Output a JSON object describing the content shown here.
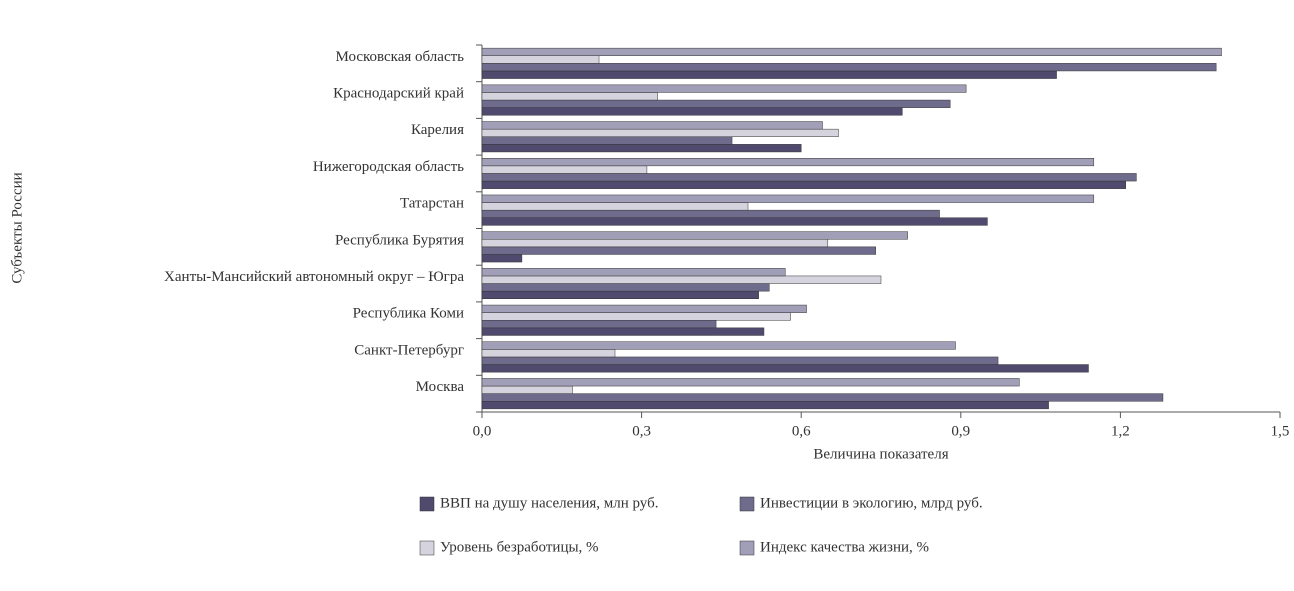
{
  "chart_data": {
    "type": "hbar",
    "y_label": "Субъекты России",
    "x_label": "Величина показателя",
    "categories": [
      "Московская область",
      "Краснодарский край",
      "Карелия",
      "Нижегородская область",
      "Татарстан",
      "Республика Бурятия",
      "Ханты-Мансийский автономный округ – Югра",
      "Республика Коми",
      "Санкт-Петербург",
      "Москва"
    ],
    "series": [
      {
        "name": "ВВП на душу населения, млн руб.",
        "color": "#4f4a6e",
        "values": [
          1.08,
          0.79,
          0.6,
          1.21,
          0.95,
          0.075,
          0.52,
          0.53,
          1.14,
          1.065
        ]
      },
      {
        "name": "Инвестиции в экологию, млрд руб.",
        "color": "#6f6b8c",
        "values": [
          1.38,
          0.88,
          0.47,
          1.23,
          0.86,
          0.74,
          0.54,
          0.44,
          0.97,
          1.28
        ]
      },
      {
        "name": "Уровень безработицы, %",
        "color": "#d5d4de",
        "values": [
          0.22,
          0.33,
          0.67,
          0.31,
          0.5,
          0.65,
          0.75,
          0.58,
          0.25,
          0.17
        ]
      },
      {
        "name": "Индекс качества жизни, %",
        "color": "#a19eb7",
        "values": [
          1.39,
          0.91,
          0.64,
          1.15,
          1.15,
          0.8,
          0.57,
          0.61,
          0.89,
          1.01
        ]
      }
    ],
    "xlim": [
      0,
      1.5
    ],
    "xticks": [
      {
        "value": 0,
        "label": "0,0"
      },
      {
        "value": 0.3,
        "label": "0,3"
      },
      {
        "value": 0.6,
        "label": "0,6"
      },
      {
        "value": 0.9,
        "label": "0,9"
      },
      {
        "value": 1.2,
        "label": "1,2"
      },
      {
        "value": 1.5,
        "label": "1,5"
      }
    ]
  }
}
